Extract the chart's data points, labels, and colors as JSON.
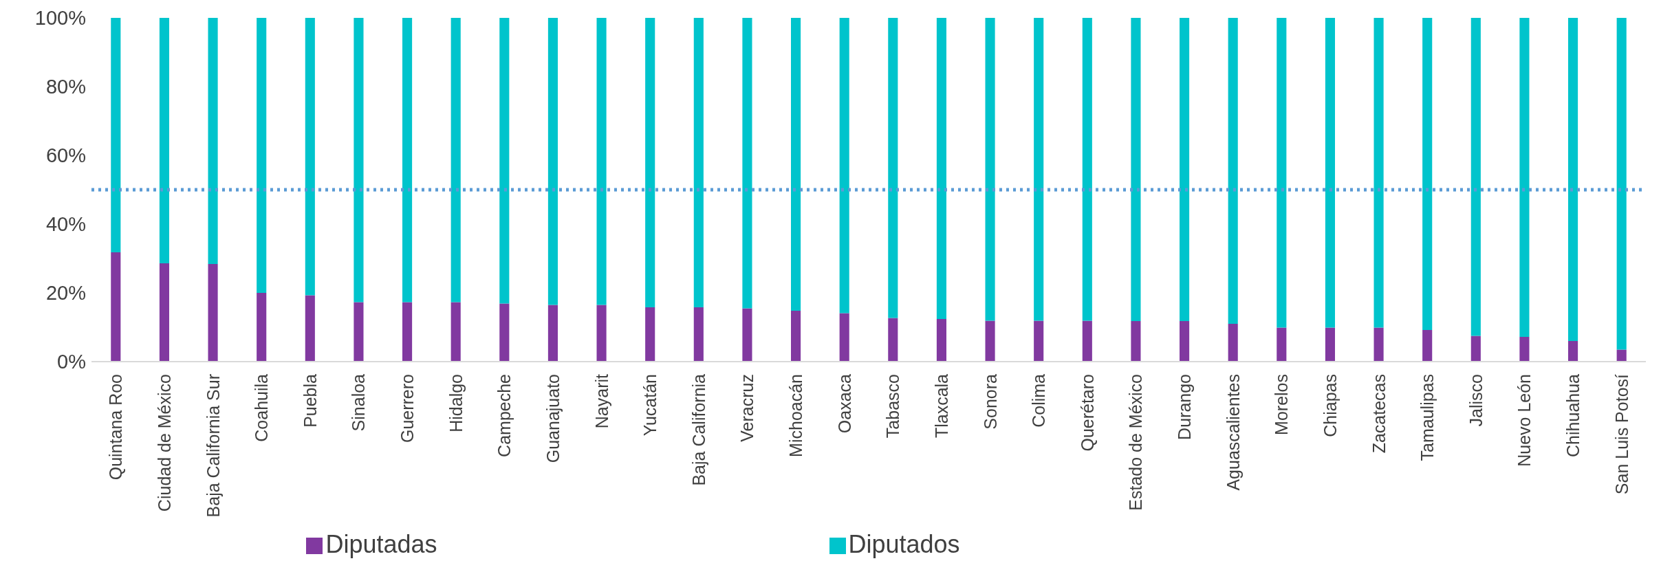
{
  "chart_data": {
    "type": "bar",
    "stacked": true,
    "categories": [
      "Quintana Roo",
      "Ciudad de México",
      "Baja California Sur",
      "Coahuila",
      "Puebla",
      "Sinaloa",
      "Guerrero",
      "Hidalgo",
      "Campeche",
      "Guanajuato",
      "Nayarit",
      "Yucatán",
      "Baja California",
      "Veracruz",
      "Michoacán",
      "Oaxaca",
      "Tabasco",
      "Tlaxcala",
      "Sonora",
      "Colima",
      "Querétaro",
      "Estado de México",
      "Durango",
      "Aguascalientes",
      "Morelos",
      "Chiapas",
      "Zacatecas",
      "Tamaulipas",
      "Jalisco",
      "Nuevo León",
      "Chihuahua",
      "San Luis Potosí"
    ],
    "series": [
      {
        "name": "Diputadas",
        "color": "#8139a0",
        "values": [
          31.8,
          28.6,
          28.4,
          20,
          19.3,
          17.3,
          17.3,
          17.3,
          16.9,
          16.5,
          16.5,
          15.8,
          15.8,
          15.5,
          14.8,
          14.1,
          12.7,
          12.4,
          11.9,
          11.9,
          11.9,
          11.8,
          11.8,
          11,
          9.9,
          9.9,
          9.9,
          9.2,
          7.5,
          7.2,
          6,
          3.5
        ]
      },
      {
        "name": "Diputados",
        "color": "#00c4cc",
        "values": [
          68.2,
          71.4,
          71.6,
          80,
          80.7,
          82.7,
          82.7,
          82.7,
          83.1,
          83.5,
          83.5,
          84.2,
          84.2,
          84.5,
          85.2,
          85.9,
          87.3,
          87.6,
          88.1,
          88.1,
          88.1,
          88.2,
          88.2,
          89,
          90.1,
          90.1,
          90.1,
          90.8,
          92.5,
          92.8,
          94,
          96.5
        ]
      }
    ],
    "ylim": [
      0,
      100
    ],
    "yticks": [
      {
        "value": 0,
        "label": "0%"
      },
      {
        "value": 20,
        "label": "20%"
      },
      {
        "value": 40,
        "label": "40%"
      },
      {
        "value": 60,
        "label": "60%"
      },
      {
        "value": 80,
        "label": "80%"
      },
      {
        "value": 100,
        "label": "100%"
      }
    ],
    "ref_lines": [
      {
        "axis": "y",
        "value": 50,
        "color": "#5b9bd5",
        "line_style": "dotted"
      }
    ],
    "grid": false,
    "legend": "bottom"
  }
}
